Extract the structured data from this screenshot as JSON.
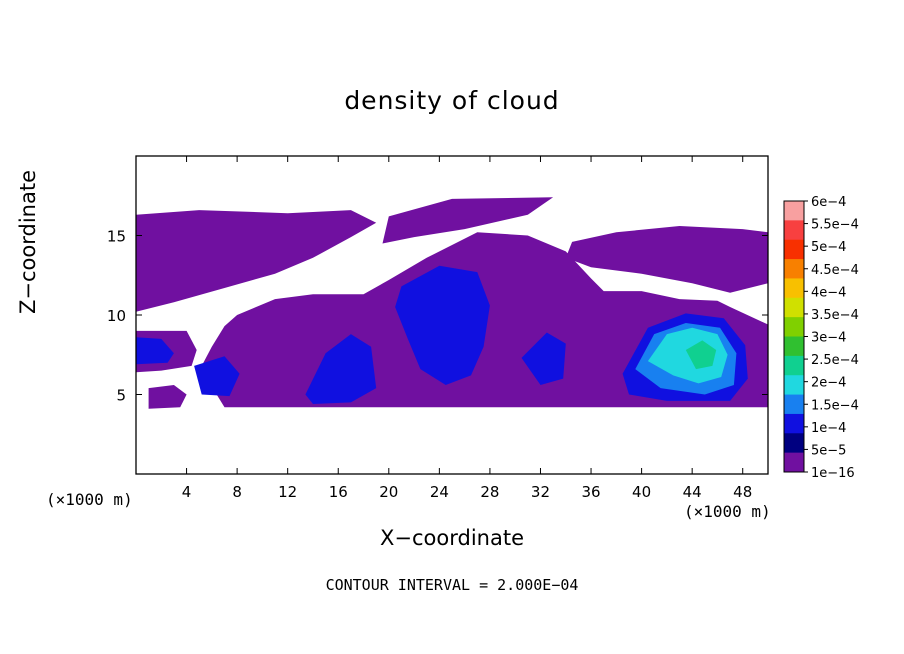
{
  "chart_data": {
    "type": "heatmap",
    "title": "density of cloud",
    "xlabel": "X−coordinate",
    "ylabel": "Z−coordinate",
    "x_unit_label": "(×1000 m)",
    "z_unit_label": "(×1000 m)",
    "xlim": [
      0,
      50
    ],
    "ylim": [
      0,
      20
    ],
    "x_ticks": [
      4,
      8,
      12,
      16,
      20,
      24,
      28,
      32,
      36,
      40,
      44,
      48
    ],
    "y_ticks": [
      5,
      10,
      15
    ],
    "footer": "CONTOUR INTERVAL = 2.000E−04",
    "colorbar": {
      "labels": [
        "6e−4",
        "5.5e−4",
        "5e−4",
        "4.5e−4",
        "4e−4",
        "3.5e−4",
        "3e−4",
        "2.5e−4",
        "2e−4",
        "1.5e−4",
        "1e−4",
        "5e−5",
        "1e−16"
      ],
      "colors": [
        "#f8a0a0",
        "#f84040",
        "#f83000",
        "#f88000",
        "#f8c000",
        "#d0e000",
        "#80d000",
        "#30c030",
        "#10d090",
        "#20d8e0",
        "#1880f0",
        "#1010e0",
        "#000080",
        "#7010a0"
      ]
    },
    "regions": [
      {
        "level": "1e−16",
        "color": "#7010a0",
        "points": [
          [
            0,
            16.3
          ],
          [
            5,
            16.6
          ],
          [
            12,
            16.4
          ],
          [
            17,
            16.6
          ],
          [
            19,
            15.8
          ],
          [
            17,
            14.9
          ],
          [
            14,
            13.6
          ],
          [
            11,
            12.6
          ],
          [
            7,
            11.7
          ],
          [
            3,
            10.8
          ],
          [
            0,
            10.2
          ]
        ]
      },
      {
        "level": "1e−16",
        "color": "#7010a0",
        "points": [
          [
            20,
            16.2
          ],
          [
            25,
            17.3
          ],
          [
            33,
            17.4
          ],
          [
            31,
            16.3
          ],
          [
            26,
            15.4
          ],
          [
            22,
            14.9
          ],
          [
            19.5,
            14.5
          ]
        ]
      },
      {
        "level": "1e−16",
        "color": "#7010a0",
        "points": [
          [
            8,
            10
          ],
          [
            11,
            11
          ],
          [
            14,
            11.3
          ],
          [
            18,
            11.3
          ],
          [
            20,
            12.2
          ],
          [
            23,
            13.6
          ],
          [
            27,
            15.2
          ],
          [
            31,
            15
          ],
          [
            34,
            14
          ],
          [
            36,
            12.3
          ],
          [
            37,
            11.5
          ],
          [
            40,
            11.5
          ],
          [
            43,
            11
          ],
          [
            46,
            10.9
          ],
          [
            47,
            10.5
          ],
          [
            50,
            9.4
          ],
          [
            50,
            4.2
          ],
          [
            36,
            4.2
          ],
          [
            24,
            4.2
          ],
          [
            14,
            4.2
          ],
          [
            7,
            4.2
          ],
          [
            6,
            5.5
          ],
          [
            5,
            6.5
          ],
          [
            6,
            8
          ],
          [
            7,
            9.3
          ]
        ]
      },
      {
        "level": "1e−16",
        "color": "#7010a0",
        "points": [
          [
            34.5,
            14.6
          ],
          [
            38,
            15.2
          ],
          [
            43,
            15.6
          ],
          [
            48,
            15.4
          ],
          [
            50,
            15.2
          ],
          [
            50,
            12
          ],
          [
            47,
            11.4
          ],
          [
            44,
            12
          ],
          [
            40,
            12.6
          ],
          [
            36,
            13
          ],
          [
            34,
            13.6
          ]
        ]
      },
      {
        "level": "1e−16",
        "color": "#7010a0",
        "points": [
          [
            0,
            9
          ],
          [
            4,
            9
          ],
          [
            4.8,
            7.8
          ],
          [
            4.4,
            6.8
          ],
          [
            2,
            6.5
          ],
          [
            0,
            6.4
          ]
        ]
      },
      {
        "level": "1e−16",
        "color": "#7010a0",
        "points": [
          [
            1,
            5.4
          ],
          [
            3,
            5.6
          ],
          [
            4,
            5
          ],
          [
            3.5,
            4.2
          ],
          [
            1,
            4.1
          ]
        ]
      },
      {
        "level": "5e−5",
        "color": "#1010e0",
        "points": [
          [
            0,
            8.6
          ],
          [
            2,
            8.5
          ],
          [
            3,
            7.6
          ],
          [
            2.5,
            7
          ],
          [
            0,
            6.9
          ]
        ]
      },
      {
        "level": "5e−5",
        "color": "#1010e0",
        "points": [
          [
            13.4,
            5
          ],
          [
            15,
            7.6
          ],
          [
            17,
            8.8
          ],
          [
            18.6,
            8
          ],
          [
            19,
            5.4
          ],
          [
            17,
            4.5
          ],
          [
            14,
            4.4
          ]
        ]
      },
      {
        "level": "5e−5",
        "color": "#1010e0",
        "points": [
          [
            21,
            11.8
          ],
          [
            24,
            13.1
          ],
          [
            27,
            12.7
          ],
          [
            28,
            10.6
          ],
          [
            27.5,
            8
          ],
          [
            26.5,
            6.2
          ],
          [
            24.5,
            5.6
          ],
          [
            22.5,
            6.6
          ],
          [
            21.5,
            8.5
          ],
          [
            20.5,
            10.5
          ]
        ]
      },
      {
        "level": "5e−5",
        "color": "#1010e0",
        "points": [
          [
            4.6,
            6.8
          ],
          [
            7,
            7.4
          ],
          [
            8.2,
            6.3
          ],
          [
            7.4,
            4.9
          ],
          [
            5.2,
            5
          ]
        ]
      },
      {
        "level": "5e−5",
        "color": "#1010e0",
        "points": [
          [
            38.5,
            6.3
          ],
          [
            40.5,
            9.2
          ],
          [
            43.5,
            10.1
          ],
          [
            46.5,
            9.8
          ],
          [
            48.2,
            8.1
          ],
          [
            48.4,
            6
          ],
          [
            47,
            4.6
          ],
          [
            42,
            4.6
          ],
          [
            39,
            5
          ]
        ]
      },
      {
        "level": "5e−5",
        "color": "#1010e0",
        "points": [
          [
            30.5,
            7.3
          ],
          [
            32.5,
            8.9
          ],
          [
            34,
            8.2
          ],
          [
            33.8,
            6
          ],
          [
            32,
            5.6
          ]
        ]
      },
      {
        "level": "1e−4",
        "color": "#1880f0",
        "points": [
          [
            39.5,
            6.6
          ],
          [
            41,
            8.8
          ],
          [
            43.5,
            9.5
          ],
          [
            46.2,
            9.2
          ],
          [
            47.5,
            7.6
          ],
          [
            47.3,
            5.6
          ],
          [
            45,
            5
          ],
          [
            41.5,
            5.4
          ]
        ]
      },
      {
        "level": "1.5e−4",
        "color": "#20d8e0",
        "points": [
          [
            40.5,
            7.1
          ],
          [
            42,
            8.8
          ],
          [
            44,
            9.2
          ],
          [
            46,
            8.8
          ],
          [
            46.8,
            7.5
          ],
          [
            46.3,
            6.1
          ],
          [
            44.5,
            5.7
          ],
          [
            42.5,
            6.2
          ]
        ]
      },
      {
        "level": "2e−4",
        "color": "#10d090",
        "points": [
          [
            43.5,
            7.8
          ],
          [
            44.8,
            8.4
          ],
          [
            45.9,
            7.8
          ],
          [
            45.6,
            6.8
          ],
          [
            44.3,
            6.6
          ]
        ]
      }
    ]
  }
}
